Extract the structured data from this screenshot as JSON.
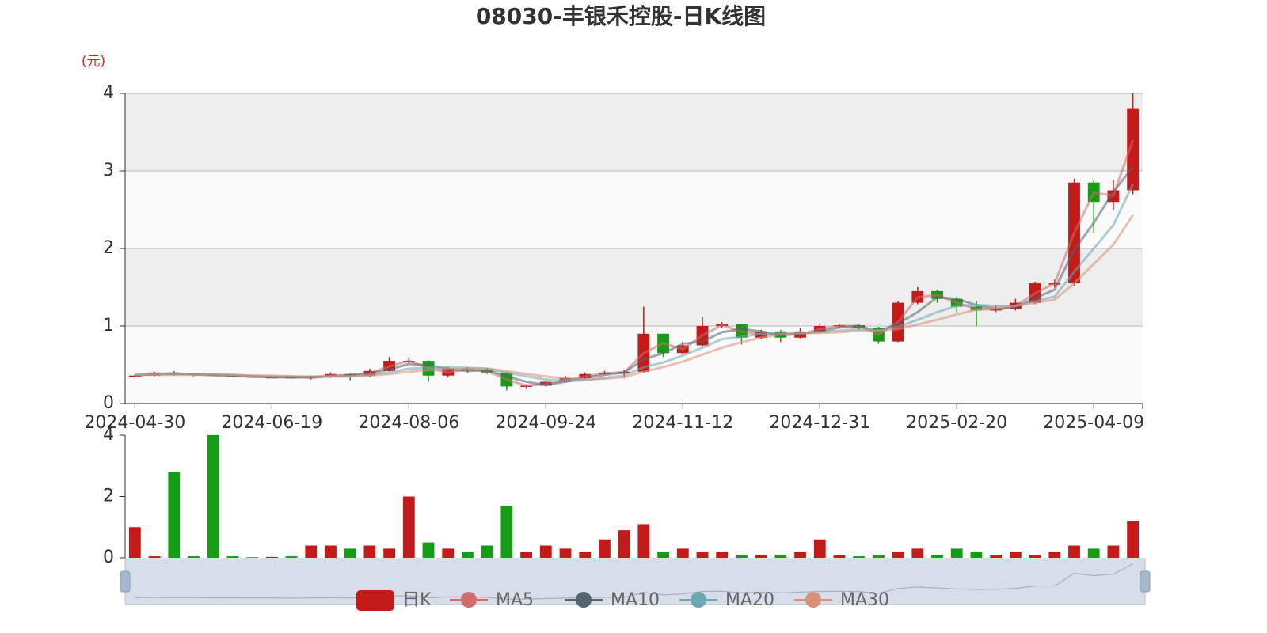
{
  "chart_data": {
    "type": "candlestick",
    "title": "08030-丰银禾控股-日K线图",
    "y_unit": "(元)",
    "candle_legend": "日K",
    "up_color": "#c31a1a",
    "down_color": "#169b16",
    "grid": true,
    "ylim": [
      0,
      4
    ],
    "yticks": [
      0,
      1,
      2,
      3,
      4
    ],
    "categories": [
      "2024-04-30",
      null,
      null,
      null,
      null,
      null,
      null,
      "2024-06-19",
      null,
      null,
      null,
      null,
      null,
      null,
      "2024-08-06",
      null,
      null,
      null,
      null,
      null,
      null,
      "2024-09-24",
      null,
      null,
      null,
      null,
      null,
      null,
      "2024-11-12",
      null,
      null,
      null,
      null,
      null,
      null,
      "2024-12-31",
      null,
      null,
      null,
      null,
      null,
      null,
      "2025-02-20",
      null,
      null,
      null,
      null,
      null,
      null,
      "2025-04-09",
      null,
      null
    ],
    "candles": [
      [
        0.35,
        0.36,
        0.34,
        0.37
      ],
      [
        0.36,
        0.4,
        0.35,
        0.41
      ],
      [
        0.4,
        0.38,
        0.36,
        0.42
      ],
      [
        0.38,
        0.37,
        0.35,
        0.39
      ],
      [
        0.37,
        0.36,
        0.35,
        0.38
      ],
      [
        0.36,
        0.35,
        0.34,
        0.37
      ],
      [
        0.35,
        0.34,
        0.33,
        0.36
      ],
      [
        0.34,
        0.34,
        0.33,
        0.35
      ],
      [
        0.34,
        0.33,
        0.32,
        0.35
      ],
      [
        0.33,
        0.34,
        0.31,
        0.36
      ],
      [
        0.34,
        0.38,
        0.33,
        0.4
      ],
      [
        0.38,
        0.36,
        0.3,
        0.39
      ],
      [
        0.36,
        0.42,
        0.34,
        0.45
      ],
      [
        0.42,
        0.55,
        0.41,
        0.6
      ],
      [
        0.55,
        0.55,
        0.52,
        0.6
      ],
      [
        0.55,
        0.36,
        0.28,
        0.56
      ],
      [
        0.36,
        0.45,
        0.34,
        0.47
      ],
      [
        0.45,
        0.44,
        0.4,
        0.47
      ],
      [
        0.44,
        0.4,
        0.38,
        0.46
      ],
      [
        0.4,
        0.22,
        0.17,
        0.41
      ],
      [
        0.22,
        0.23,
        0.2,
        0.25
      ],
      [
        0.23,
        0.28,
        0.22,
        0.3
      ],
      [
        0.28,
        0.33,
        0.27,
        0.36
      ],
      [
        0.33,
        0.38,
        0.32,
        0.4
      ],
      [
        0.38,
        0.4,
        0.37,
        0.42
      ],
      [
        0.4,
        0.41,
        0.33,
        0.43
      ],
      [
        0.41,
        0.9,
        0.4,
        1.25
      ],
      [
        0.9,
        0.65,
        0.6,
        0.9
      ],
      [
        0.65,
        0.75,
        0.63,
        0.8
      ],
      [
        0.75,
        1.0,
        0.74,
        1.12
      ],
      [
        1.0,
        1.02,
        0.98,
        1.05
      ],
      [
        1.02,
        0.85,
        0.76,
        1.03
      ],
      [
        0.85,
        0.93,
        0.83,
        0.95
      ],
      [
        0.93,
        0.85,
        0.79,
        0.95
      ],
      [
        0.85,
        0.93,
        0.84,
        0.97
      ],
      [
        0.93,
        1.0,
        0.92,
        1.02
      ],
      [
        1.0,
        1.01,
        0.98,
        1.03
      ],
      [
        1.01,
        0.98,
        0.95,
        1.03
      ],
      [
        0.98,
        0.8,
        0.77,
        0.99
      ],
      [
        0.8,
        1.3,
        0.79,
        1.32
      ],
      [
        1.3,
        1.45,
        1.28,
        1.5
      ],
      [
        1.45,
        1.35,
        1.3,
        1.47
      ],
      [
        1.35,
        1.25,
        1.17,
        1.38
      ],
      [
        1.25,
        1.2,
        1.0,
        1.32
      ],
      [
        1.2,
        1.22,
        1.18,
        1.27
      ],
      [
        1.22,
        1.3,
        1.2,
        1.35
      ],
      [
        1.3,
        1.55,
        1.28,
        1.57
      ],
      [
        1.55,
        1.55,
        1.5,
        1.6
      ],
      [
        1.55,
        2.85,
        1.52,
        2.9
      ],
      [
        2.85,
        2.6,
        2.2,
        2.88
      ],
      [
        2.6,
        2.75,
        2.5,
        2.88
      ],
      [
        2.75,
        3.8,
        2.7,
        4.0
      ]
    ],
    "series": [
      {
        "name": "MA5",
        "color": "#d26b6b",
        "values": [
          0.36,
          0.38,
          0.39,
          0.375,
          0.365,
          0.355,
          0.345,
          0.34,
          0.335,
          0.335,
          0.36,
          0.37,
          0.39,
          0.48,
          0.55,
          0.46,
          0.4,
          0.44,
          0.42,
          0.31,
          0.23,
          0.25,
          0.3,
          0.35,
          0.39,
          0.4,
          0.65,
          0.78,
          0.7,
          0.88,
          1.01,
          0.93,
          0.89,
          0.89,
          0.89,
          0.96,
          1.0,
          1.0,
          0.89,
          1.05,
          1.37,
          1.4,
          1.3,
          1.22,
          1.21,
          1.26,
          1.42,
          1.55,
          2.2,
          2.72,
          2.68,
          3.4
        ]
      },
      {
        "name": "MA10",
        "color": "#546570",
        "values": [
          0.36,
          0.38,
          0.38,
          0.38,
          0.37,
          0.36,
          0.35,
          0.34,
          0.34,
          0.34,
          0.35,
          0.36,
          0.39,
          0.44,
          0.51,
          0.49,
          0.45,
          0.42,
          0.43,
          0.35,
          0.28,
          0.24,
          0.28,
          0.33,
          0.37,
          0.4,
          0.57,
          0.65,
          0.77,
          0.8,
          0.92,
          0.96,
          0.93,
          0.88,
          0.9,
          0.93,
          0.98,
          1.0,
          0.93,
          1.03,
          1.18,
          1.37,
          1.35,
          1.27,
          1.22,
          1.24,
          1.36,
          1.47,
          1.98,
          2.33,
          2.73,
          3.05
        ]
      },
      {
        "name": "MA20",
        "color": "#6fa8b3",
        "values": [
          0.37,
          0.38,
          0.38,
          0.38,
          0.38,
          0.37,
          0.36,
          0.35,
          0.35,
          0.34,
          0.35,
          0.35,
          0.37,
          0.4,
          0.45,
          0.46,
          0.47,
          0.46,
          0.45,
          0.4,
          0.35,
          0.31,
          0.29,
          0.3,
          0.33,
          0.36,
          0.47,
          0.53,
          0.62,
          0.72,
          0.83,
          0.86,
          0.9,
          0.92,
          0.91,
          0.92,
          0.94,
          0.96,
          0.94,
          0.99,
          1.08,
          1.18,
          1.26,
          1.27,
          1.26,
          1.26,
          1.32,
          1.38,
          1.7,
          2.0,
          2.3,
          2.83
        ]
      },
      {
        "name": "MA30",
        "color": "#d89078",
        "values": [
          0.37,
          0.37,
          0.37,
          0.37,
          0.37,
          0.37,
          0.36,
          0.36,
          0.35,
          0.35,
          0.35,
          0.35,
          0.36,
          0.38,
          0.41,
          0.43,
          0.44,
          0.45,
          0.45,
          0.42,
          0.38,
          0.35,
          0.32,
          0.31,
          0.32,
          0.34,
          0.41,
          0.47,
          0.54,
          0.63,
          0.72,
          0.79,
          0.85,
          0.89,
          0.91,
          0.91,
          0.92,
          0.94,
          0.94,
          0.96,
          1.02,
          1.08,
          1.15,
          1.21,
          1.24,
          1.26,
          1.3,
          1.34,
          1.55,
          1.8,
          2.05,
          2.43
        ]
      }
    ],
    "volume": {
      "ylim": [
        0,
        4
      ],
      "yticks": [
        0,
        2,
        4
      ],
      "values": [
        1.0,
        0.05,
        2.8,
        0.05,
        4.0,
        0.05,
        0.02,
        0.03,
        0.05,
        0.4,
        0.4,
        0.3,
        0.4,
        0.3,
        2.0,
        0.5,
        0.3,
        0.2,
        0.4,
        1.7,
        0.2,
        0.4,
        0.3,
        0.2,
        0.6,
        0.9,
        1.1,
        0.2,
        0.3,
        0.2,
        0.2,
        0.1,
        0.1,
        0.1,
        0.2,
        0.6,
        0.1,
        0.05,
        0.1,
        0.2,
        0.3,
        0.1,
        0.3,
        0.2,
        0.1,
        0.2,
        0.1,
        0.2,
        0.4,
        0.3,
        0.4,
        1.2
      ]
    }
  }
}
